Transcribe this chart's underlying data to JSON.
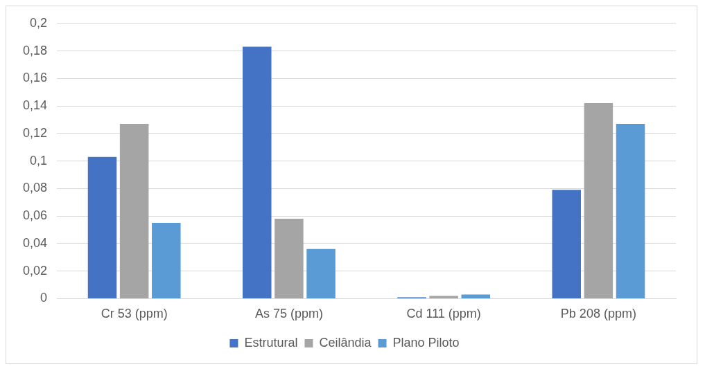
{
  "chart_data": {
    "type": "bar",
    "categories": [
      "Cr 53 (ppm)",
      "As 75 (ppm)",
      "Cd 111 (ppm)",
      "Pb 208 (ppm)"
    ],
    "series": [
      {
        "name": "Estrutural",
        "color": "#4472c4",
        "values": [
          0.103,
          0.183,
          0.001,
          0.079
        ]
      },
      {
        "name": "Ceilândia",
        "color": "#a5a5a5",
        "values": [
          0.127,
          0.058,
          0.002,
          0.142
        ]
      },
      {
        "name": "Plano Piloto",
        "color": "#5b9bd5",
        "values": [
          0.055,
          0.036,
          0.003,
          0.127
        ]
      }
    ],
    "ylim": [
      0,
      0.2
    ],
    "yticks": [
      0,
      {
        "value": 0.02,
        "label": "0,02"
      },
      {
        "value": 0.04,
        "label": "0,04"
      },
      {
        "value": 0.06,
        "label": "0,06"
      },
      {
        "value": 0.08,
        "label": "0,08"
      },
      {
        "value": 0.1,
        "label": "0,1"
      },
      {
        "value": 0.12,
        "label": "0,12"
      },
      {
        "value": 0.14,
        "label": "0,14"
      },
      {
        "value": 0.16,
        "label": "0,16"
      },
      {
        "value": 0.18,
        "label": "0,18"
      },
      {
        "value": 0.2,
        "label": "0,2"
      }
    ],
    "grid": "y",
    "legend": "bottom"
  }
}
